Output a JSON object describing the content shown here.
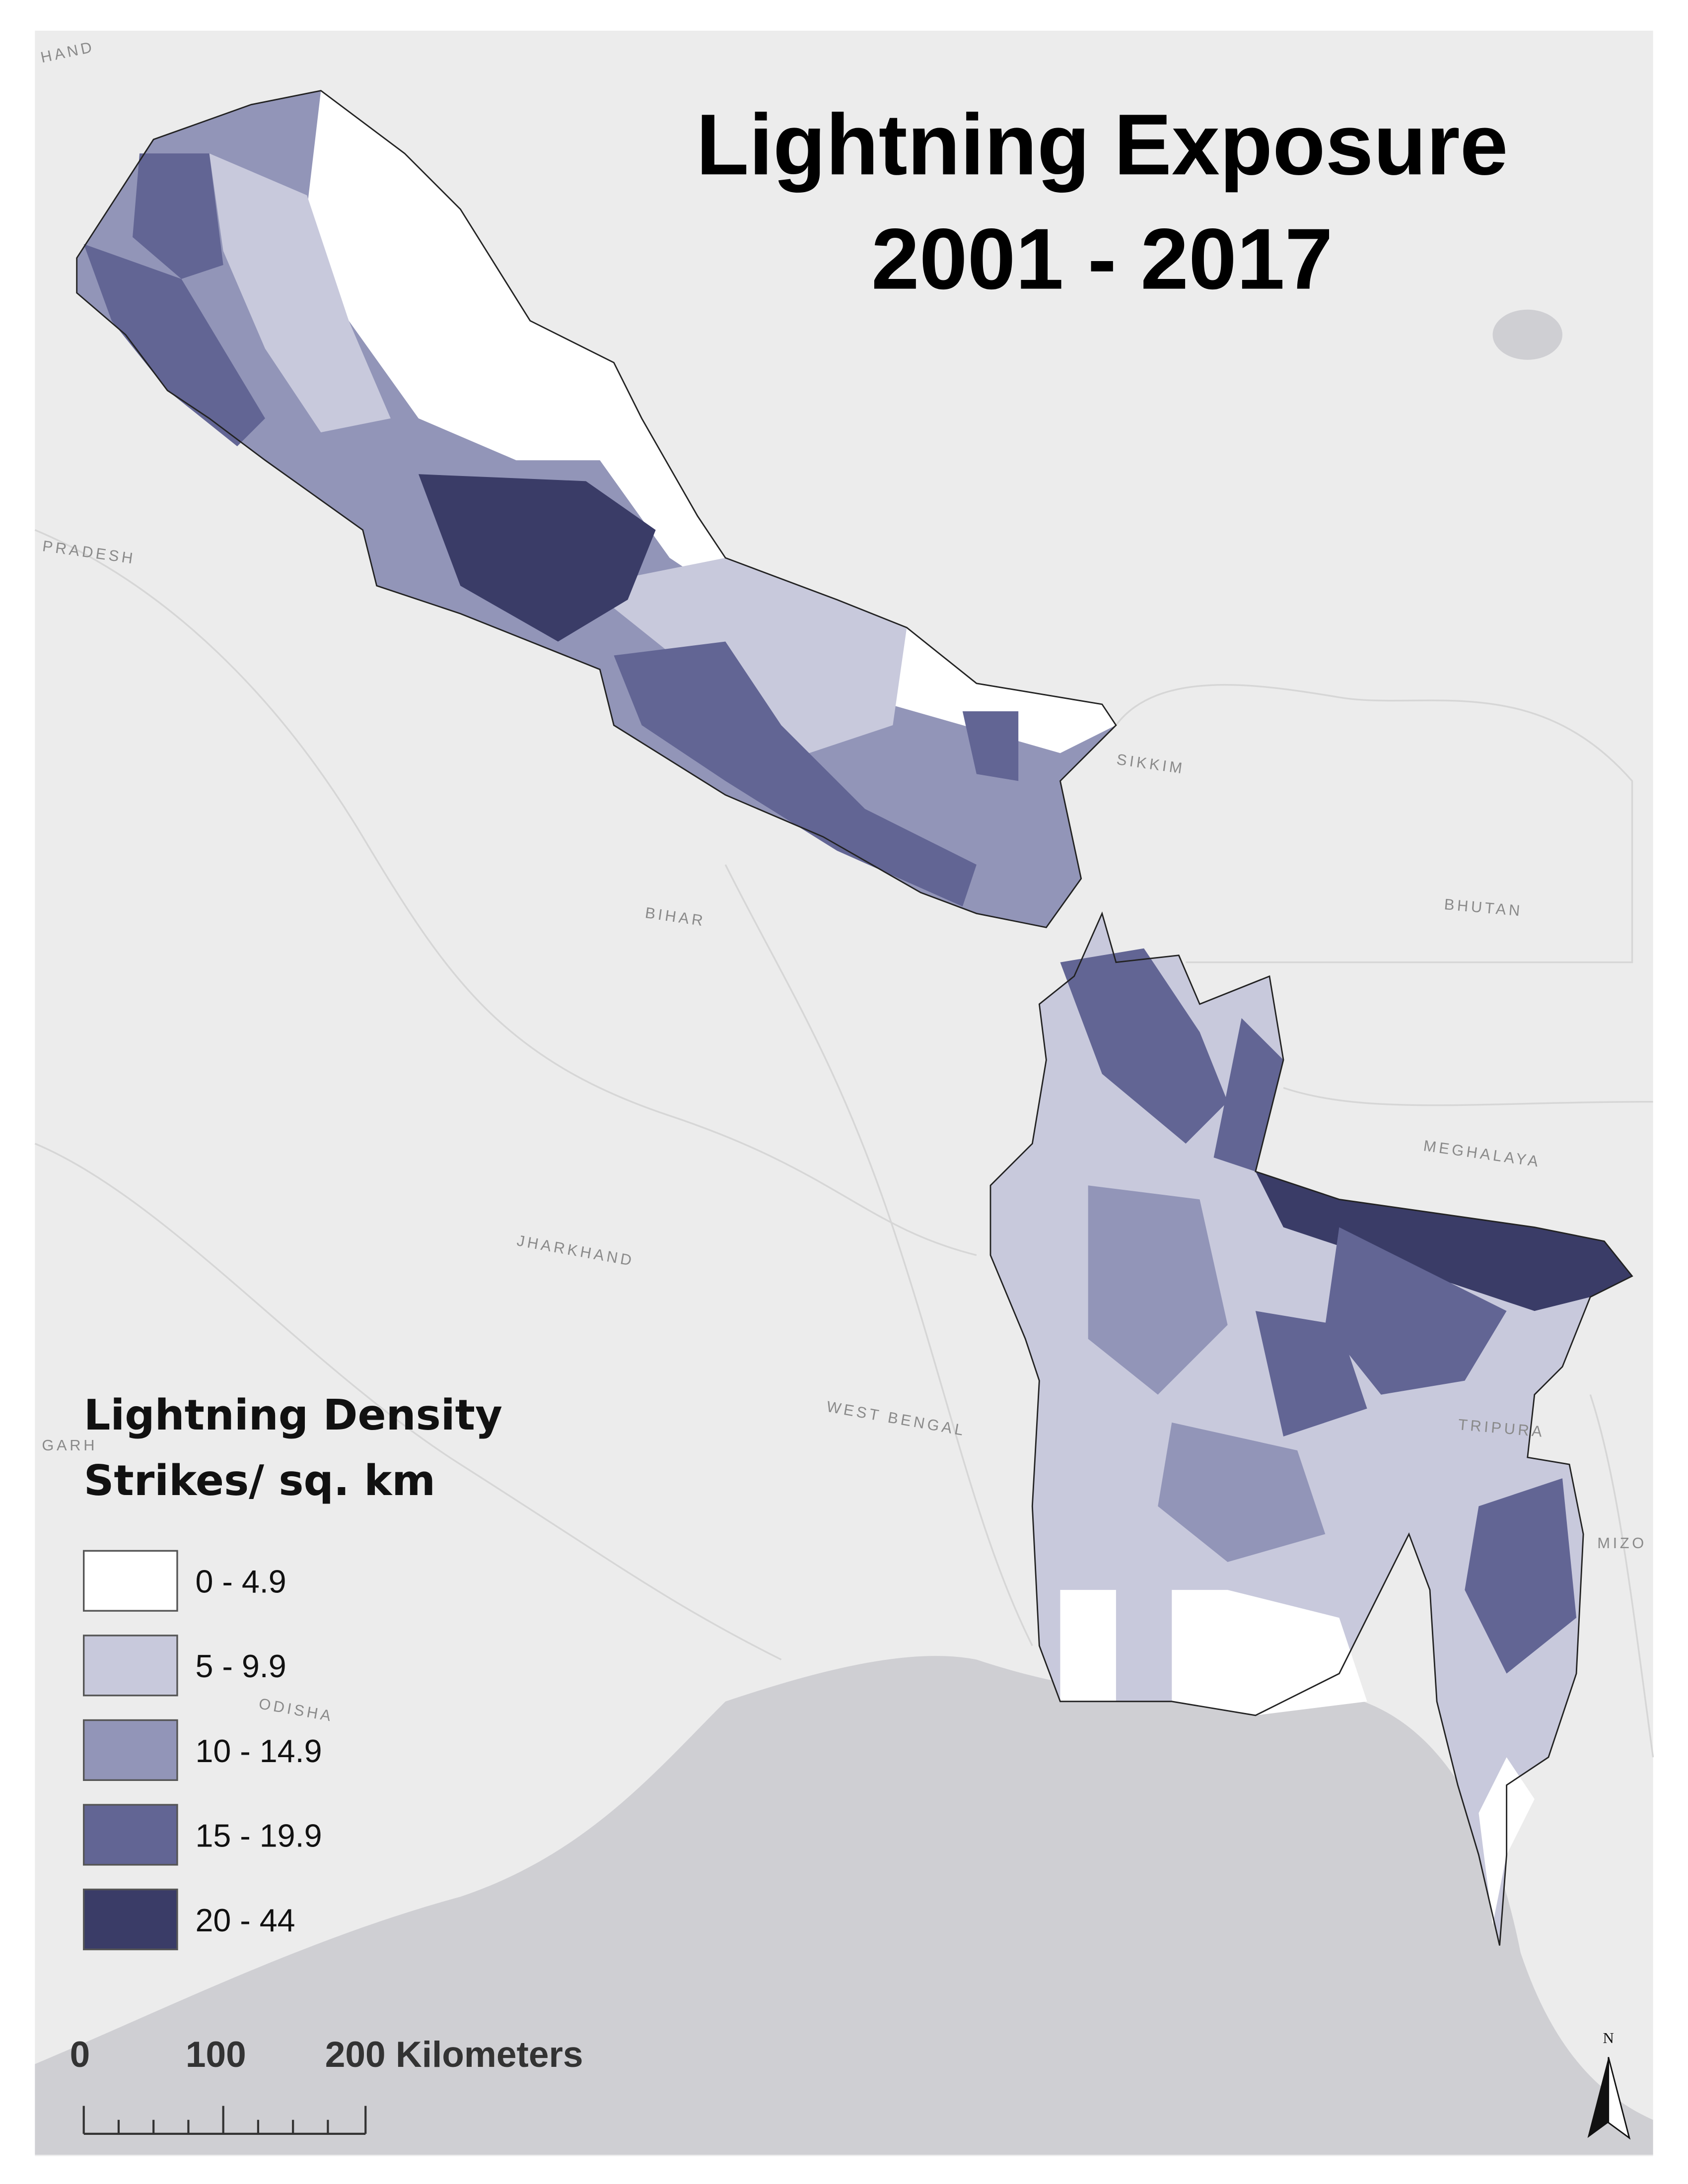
{
  "title": [
    "Lightning Exposure",
    "2001 - 2017"
  ],
  "legend": {
    "title": [
      "Lightning Density",
      "Strikes/ sq. km"
    ],
    "items": [
      {
        "label": "0 - 4.9",
        "color": "#ffffff"
      },
      {
        "label": "5 - 9.9",
        "color": "#c8c9dc"
      },
      {
        "label": "10 - 14.9",
        "color": "#9295b8"
      },
      {
        "label": "15 - 19.9",
        "color": "#626594"
      },
      {
        "label": "20 - 44",
        "color": "#3a3c67"
      }
    ]
  },
  "place_labels": [
    "HAND",
    "PRADESH",
    "SIKKIM",
    "BHUTAN",
    "BIHAR",
    "MEGHALAYA",
    "JHARKHAND",
    "WEST BENGAL",
    "TRIPURA",
    "MIZO",
    "GARH",
    "ODISHA"
  ],
  "scale_bar": {
    "labels": [
      "0",
      "100",
      "200 Kilometers"
    ]
  },
  "north_arrow": "N"
}
